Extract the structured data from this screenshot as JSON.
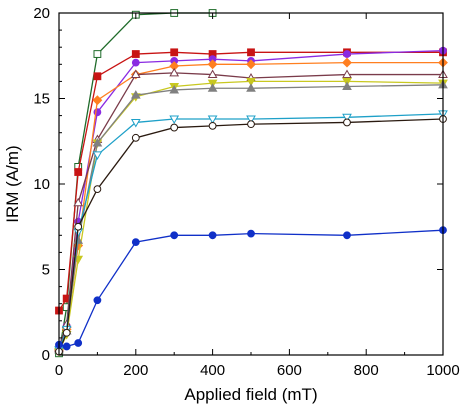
{
  "chart_data": {
    "type": "line",
    "title": "",
    "xlabel": "Applied field (mT)",
    "ylabel": "IRM (A/m)",
    "xlim": [
      0,
      1000
    ],
    "ylim": [
      0,
      20
    ],
    "xticks": [
      "0",
      "200",
      "400",
      "600",
      "800",
      "1000"
    ],
    "yticks": [
      "0",
      "5",
      "10",
      "15",
      "20"
    ],
    "grid": false,
    "legend": "none",
    "series": [
      {
        "color": "#1f6b2a",
        "marker": "square-open",
        "x": [
          0,
          20,
          50,
          100,
          200,
          300,
          400
        ],
        "y": [
          0.1,
          2.8,
          11.0,
          17.6,
          19.9,
          20.0,
          20.0
        ]
      },
      {
        "color": "#c81414",
        "marker": "square",
        "x": [
          0,
          20,
          50,
          100,
          200,
          300,
          400,
          500,
          750,
          1000
        ],
        "y": [
          2.6,
          3.3,
          10.7,
          16.3,
          17.6,
          17.7,
          17.6,
          17.7,
          17.7,
          17.7
        ]
      },
      {
        "color": "#8a2be2",
        "marker": "circle",
        "x": [
          0,
          20,
          50,
          100,
          200,
          300,
          400,
          500,
          750,
          1000
        ],
        "y": [
          0.5,
          1.7,
          7.8,
          14.2,
          17.1,
          17.2,
          17.3,
          17.2,
          17.6,
          17.8
        ]
      },
      {
        "color": "#ff7f20",
        "marker": "diamond",
        "x": [
          0,
          20,
          50,
          100,
          200,
          300,
          400,
          500,
          750,
          1000
        ],
        "y": [
          0.3,
          1.5,
          6.4,
          14.9,
          16.4,
          16.9,
          17.0,
          17.0,
          17.1,
          17.1
        ]
      },
      {
        "color": "#7a3b4a",
        "marker": "triangle-open",
        "x": [
          0,
          20,
          50,
          100,
          200,
          300,
          400,
          500,
          750,
          1000
        ],
        "y": [
          0.4,
          1.8,
          8.9,
          12.6,
          16.4,
          16.5,
          16.4,
          16.2,
          16.4,
          16.4
        ]
      },
      {
        "color": "#c8c820",
        "marker": "triangle-down",
        "x": [
          0,
          20,
          50,
          100,
          200,
          300,
          400,
          500,
          750,
          1000
        ],
        "y": [
          0.2,
          1.2,
          5.6,
          12.4,
          15.1,
          15.7,
          15.9,
          16.0,
          16.0,
          15.9
        ]
      },
      {
        "color": "#808080",
        "marker": "triangle",
        "x": [
          0,
          20,
          50,
          100,
          200,
          300,
          400,
          500,
          750,
          1000
        ],
        "y": [
          0.3,
          1.4,
          6.7,
          12.4,
          15.2,
          15.5,
          15.6,
          15.6,
          15.7,
          15.8
        ]
      },
      {
        "color": "#1ea0c8",
        "marker": "triangle-down-open",
        "x": [
          0,
          20,
          50,
          100,
          200,
          300,
          400,
          500,
          750,
          1000
        ],
        "y": [
          0.3,
          1.5,
          7.2,
          11.7,
          13.6,
          13.8,
          13.8,
          13.8,
          13.9,
          14.1
        ]
      },
      {
        "color": "#2a1a10",
        "marker": "circle-open",
        "x": [
          0,
          20,
          50,
          100,
          200,
          300,
          400,
          500,
          750,
          1000
        ],
        "y": [
          0.2,
          1.3,
          7.5,
          9.7,
          12.7,
          13.3,
          13.4,
          13.5,
          13.6,
          13.8
        ]
      },
      {
        "color": "#1030c8",
        "marker": "circle",
        "x": [
          0,
          20,
          50,
          100,
          200,
          300,
          400,
          500,
          750,
          1000
        ],
        "y": [
          0.6,
          0.5,
          0.7,
          3.2,
          6.6,
          7.0,
          7.0,
          7.1,
          7.0,
          7.3
        ]
      }
    ]
  }
}
